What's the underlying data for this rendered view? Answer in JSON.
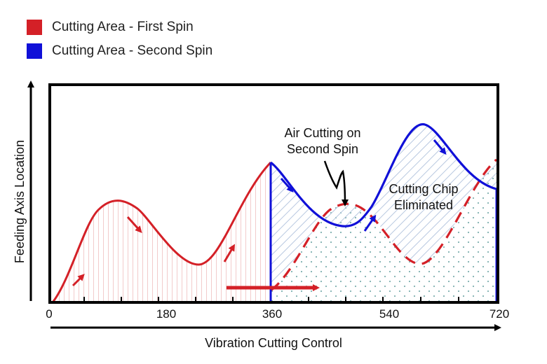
{
  "legend": [
    {
      "label": "Cutting Area - First Spin",
      "color": "#d42027"
    },
    {
      "label": "Cutting Area - Second Spin",
      "color": "#1010d8"
    }
  ],
  "axes": {
    "y_label": "Feeding Axis Location",
    "x_label": "Vibration Cutting Control",
    "x_ticks": [
      "0",
      "180",
      "360",
      "540",
      "720"
    ]
  },
  "annotations": {
    "air_cutting": [
      "Air Cutting on",
      "Second Spin"
    ],
    "chip_eliminated": [
      "Cutting Chip",
      "Eliminated"
    ]
  },
  "colors": {
    "first_spin": "#d42027",
    "second_spin": "#1010d8",
    "hatch_red": "#e8a8a8",
    "hatch_blue": "#b8c8e0",
    "dots": "#7fb0b0",
    "frame": "#000000"
  }
}
